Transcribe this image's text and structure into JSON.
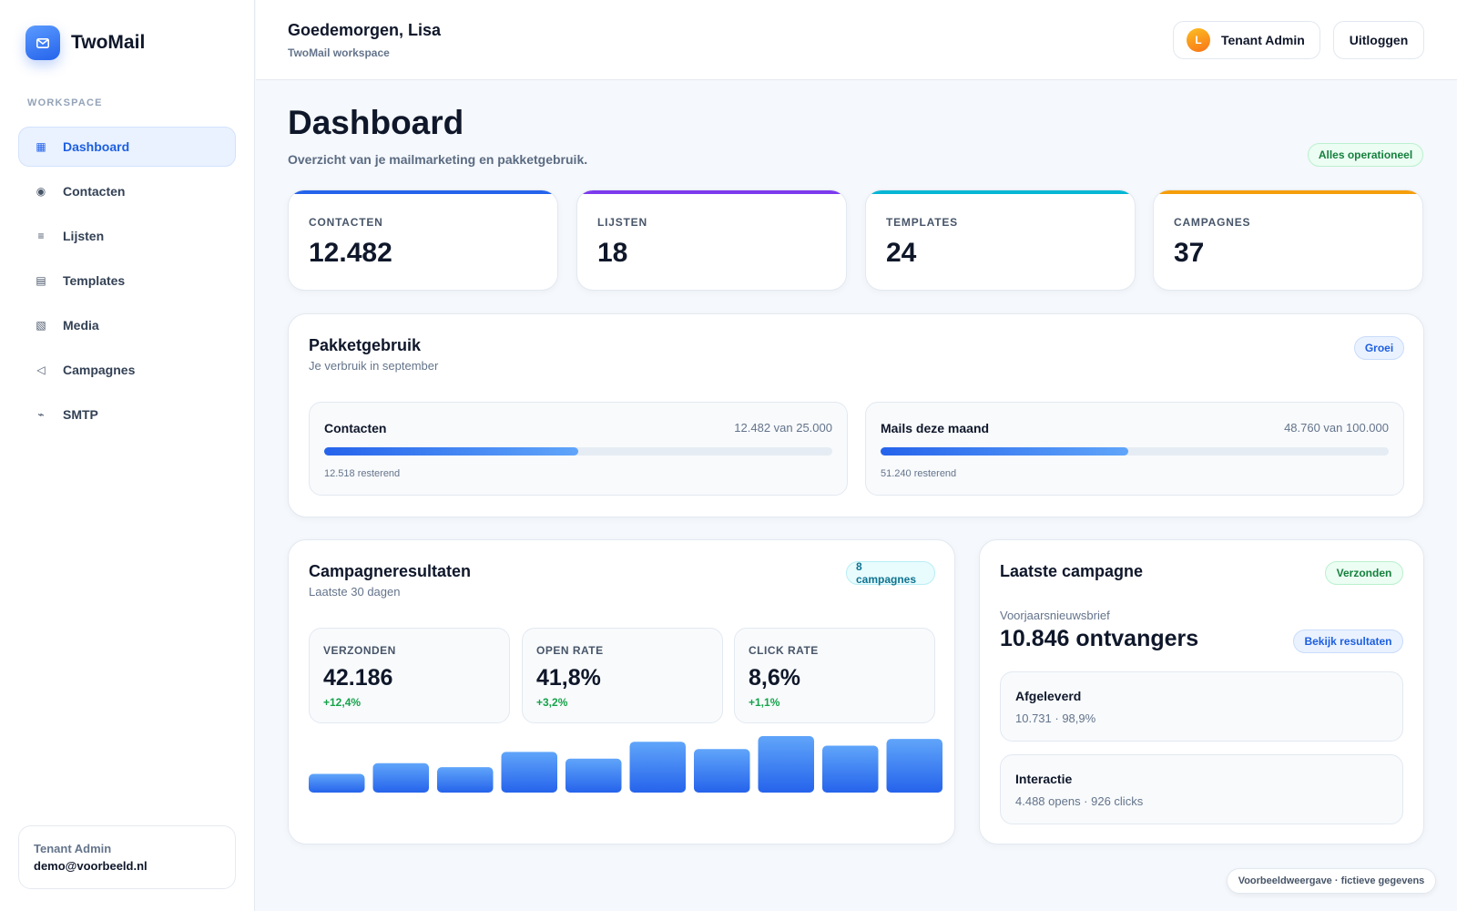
{
  "app": {
    "name": "TwoMail",
    "logo_icon": "mail-icon"
  },
  "sidebar": {
    "section_label": "WORKSPACE",
    "items": [
      {
        "label": "Dashboard",
        "icon": "grid-icon",
        "glyph": "▦",
        "active": true
      },
      {
        "label": "Contacten",
        "icon": "contact-icon",
        "glyph": "◉",
        "active": false
      },
      {
        "label": "Lijsten",
        "icon": "list-icon",
        "glyph": "≡",
        "active": false
      },
      {
        "label": "Templates",
        "icon": "template-icon",
        "glyph": "▤",
        "active": false
      },
      {
        "label": "Media",
        "icon": "media-icon",
        "glyph": "▧",
        "active": false
      },
      {
        "label": "Campagnes",
        "icon": "send-icon",
        "glyph": "◁",
        "active": false
      },
      {
        "label": "SMTP",
        "icon": "smtp-icon",
        "glyph": "⌁",
        "active": false
      }
    ],
    "user": {
      "role": "Tenant Admin",
      "email": "demo@voorbeeld.nl"
    }
  },
  "header": {
    "greeting": "Goedemorgen, Lisa",
    "workspace": "TwoMail workspace",
    "tenant_button": {
      "avatar_initial": "L",
      "label": "Tenant Admin"
    },
    "logout_label": "Uitloggen"
  },
  "page": {
    "title": "Dashboard",
    "subtitle": "Overzicht van je mailmarketing en pakketgebruik.",
    "status_badge": "Alles operationeel"
  },
  "stats": [
    {
      "label": "CONTACTEN",
      "value": "12.482",
      "accent": "#2563eb"
    },
    {
      "label": "LIJSTEN",
      "value": "18",
      "accent": "#7c3aed"
    },
    {
      "label": "TEMPLATES",
      "value": "24",
      "accent": "#06b6d4"
    },
    {
      "label": "CAMPAGNES",
      "value": "37",
      "accent": "#f59e0b"
    }
  ],
  "usage": {
    "title": "Pakketgebruik",
    "subtitle": "Je verbruik in september",
    "badge": "Groei",
    "items": [
      {
        "name": "Contacten",
        "count": "12.482 van 25.000",
        "remaining": "12.518 resterend",
        "fraction": 0.4993
      },
      {
        "name": "Mails deze maand",
        "count": "48.760 van 100.000",
        "remaining": "51.240 resterend",
        "fraction": 0.4876
      }
    ]
  },
  "results": {
    "title": "Campagneresultaten",
    "subtitle": "Laatste 30 dagen",
    "badge": "8 campagnes",
    "metrics": [
      {
        "label": "VERZONDEN",
        "value": "42.186",
        "delta": "+12,4%"
      },
      {
        "label": "OPEN RATE",
        "value": "41,8%",
        "delta": "+3,2%"
      },
      {
        "label": "CLICK RATE",
        "value": "8,6%",
        "delta": "+1,1%"
      }
    ]
  },
  "chart_data": {
    "type": "bar",
    "values": [
      0.33,
      0.52,
      0.45,
      0.72,
      0.6,
      0.9,
      0.77,
      1.0,
      0.83,
      0.95
    ],
    "ylim": [
      0,
      1
    ],
    "grid": false,
    "bar_color_top": "#60a5fa",
    "bar_color_bottom": "#2563eb"
  },
  "latest": {
    "title": "Laatste campagne",
    "status": "Verzonden",
    "campaign_name": "Voorjaarsnieuwsbrief",
    "recipients": "10.846 ontvangers",
    "view_button": "Bekijk resultaten",
    "delivered": {
      "title": "Afgeleverd",
      "text": "10.731 · 98,9%"
    },
    "interaction": {
      "title": "Interactie",
      "text": "4.488 opens · 926 clicks"
    }
  },
  "footer": {
    "note": "Voorbeeldweergave · fictieve gegevens"
  }
}
